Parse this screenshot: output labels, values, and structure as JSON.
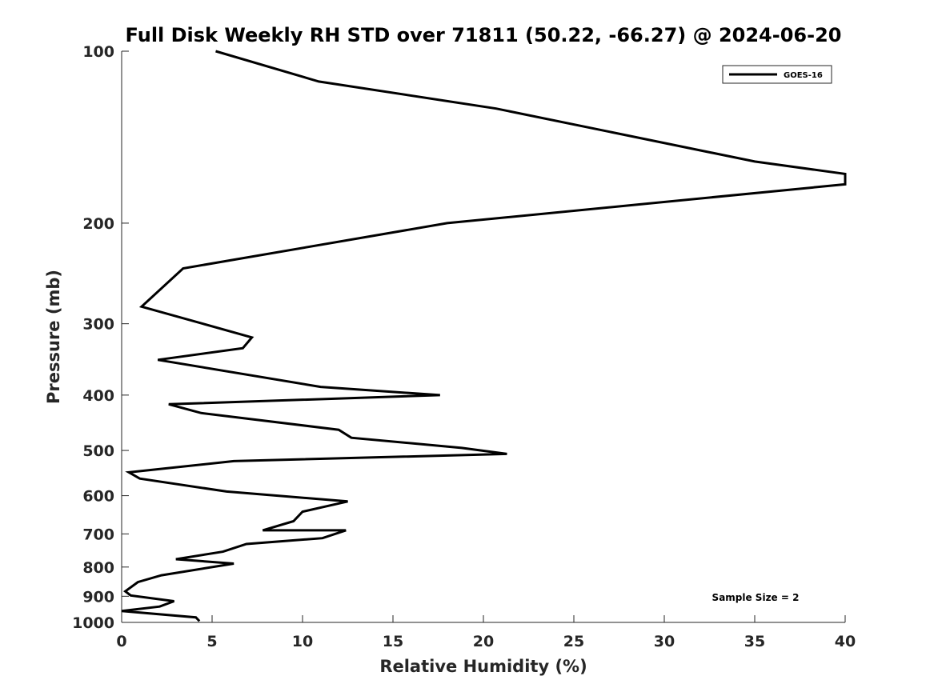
{
  "chart_data": {
    "type": "line",
    "title": "Full Disk Weekly RH STD over 71811 (50.22, -66.27) @ 2024-06-20",
    "xlabel": "Relative Humidity (%)",
    "ylabel": "Pressure (mb)",
    "xlim": [
      0,
      40
    ],
    "ylim": [
      1000,
      100
    ],
    "yscale": "log",
    "grid": false,
    "xticks": [
      0,
      5,
      10,
      15,
      20,
      25,
      30,
      35,
      40
    ],
    "yticks": [
      100,
      200,
      300,
      400,
      500,
      600,
      700,
      800,
      900,
      1000
    ],
    "legend_position": "top-right",
    "annotation": "Sample Size = 2",
    "series": [
      {
        "name": "GOES-16",
        "color": "#000000",
        "x": [
          5.2,
          10.9,
          20.7,
          35.0,
          40.0,
          40.0,
          18.0,
          3.4,
          1.1,
          4.5,
          7.2,
          6.7,
          2.0,
          11.0,
          17.6,
          2.6,
          4.4,
          12.0,
          12.7,
          18.8,
          21.3,
          6.2,
          0.4,
          1.0,
          5.8,
          12.5,
          10.0,
          9.5,
          7.8,
          12.4,
          11.1,
          6.9,
          5.6,
          3.0,
          6.2,
          2.2,
          0.9,
          0.2,
          0.5,
          2.9,
          2.1,
          0.0,
          4.1,
          4.3
        ],
        "y": [
          100,
          113,
          126,
          156,
          164,
          171,
          200,
          240,
          280,
          300,
          317,
          331,
          347,
          387,
          400,
          415,
          430,
          460,
          475,
          495,
          507,
          522,
          546,
          560,
          590,
          614,
          640,
          665,
          690,
          690,
          712,
          729,
          752,
          775,
          789,
          827,
          850,
          882,
          897,
          918,
          938,
          955,
          980,
          995
        ]
      }
    ]
  }
}
